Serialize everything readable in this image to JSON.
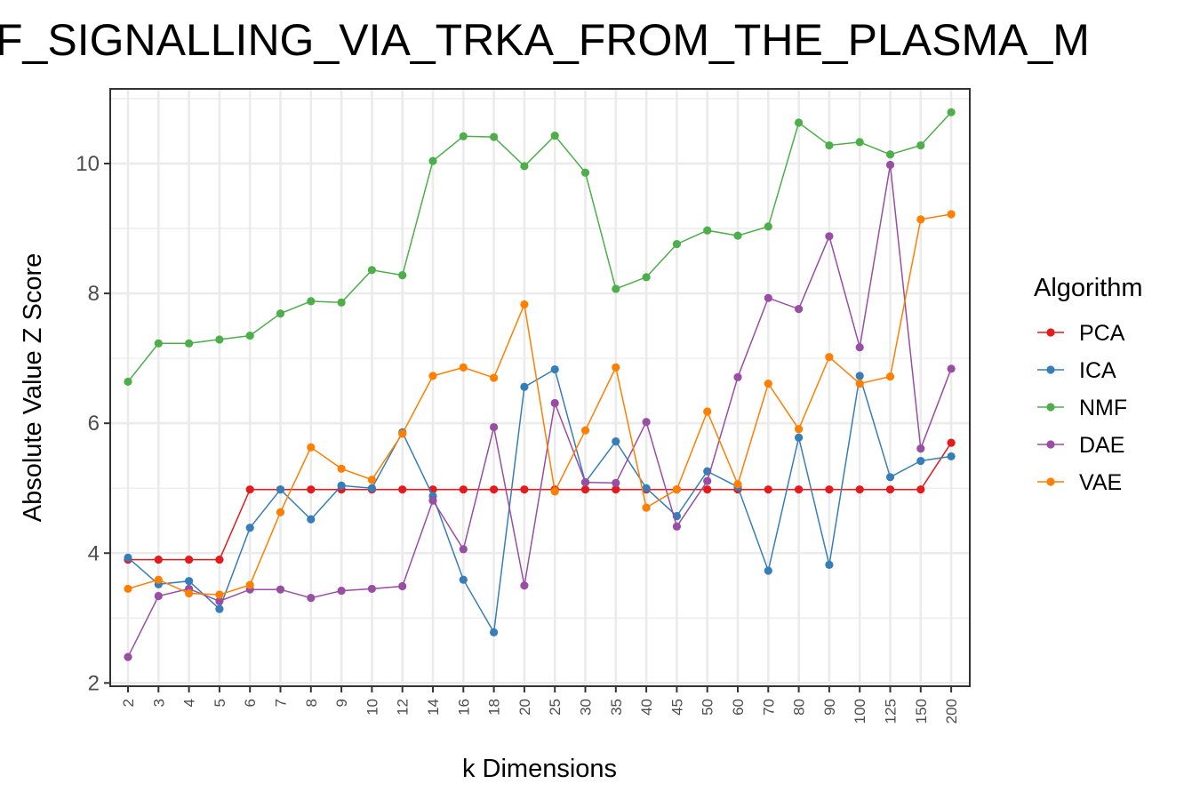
{
  "chart_data": {
    "type": "line",
    "title": "F_SIGNALLING_VIA_TRKA_FROM_THE_PLASMA_M",
    "xlabel": "k Dimensions",
    "ylabel": "Absolute Value Z Score",
    "categories": [
      "2",
      "3",
      "4",
      "5",
      "6",
      "7",
      "8",
      "9",
      "10",
      "12",
      "14",
      "16",
      "18",
      "20",
      "25",
      "30",
      "35",
      "40",
      "45",
      "50",
      "60",
      "70",
      "80",
      "90",
      "100",
      "125",
      "150",
      "200"
    ],
    "yticks": [
      2,
      4,
      6,
      8,
      10
    ],
    "ylim": [
      1.95,
      11.15
    ],
    "grid": true,
    "legend": {
      "title": "Algorithm",
      "position": "right"
    },
    "series": [
      {
        "name": "PCA",
        "color": "#e41a1c",
        "values": [
          3.9,
          3.9,
          3.9,
          3.9,
          4.98,
          4.98,
          4.98,
          4.98,
          4.98,
          4.98,
          4.98,
          4.98,
          4.98,
          4.98,
          4.98,
          4.98,
          4.98,
          4.98,
          4.98,
          4.98,
          4.98,
          4.98,
          4.98,
          4.98,
          4.98,
          4.98,
          4.98,
          5.7
        ]
      },
      {
        "name": "ICA",
        "color": "#377eb8",
        "values": [
          3.93,
          3.52,
          3.57,
          3.14,
          4.39,
          4.98,
          4.52,
          5.04,
          5.0,
          5.86,
          4.88,
          3.59,
          2.78,
          6.56,
          6.83,
          5.09,
          5.72,
          5.0,
          4.57,
          5.26,
          5.02,
          3.73,
          5.78,
          3.82,
          6.73,
          5.17,
          5.42,
          5.49
        ]
      },
      {
        "name": "NMF",
        "color": "#4daf4a",
        "values": [
          6.64,
          7.23,
          7.23,
          7.29,
          7.35,
          7.69,
          7.88,
          7.86,
          8.36,
          8.28,
          10.04,
          10.42,
          10.41,
          9.96,
          10.43,
          9.86,
          8.07,
          8.25,
          8.76,
          8.97,
          8.89,
          9.03,
          10.63,
          10.28,
          10.33,
          10.14,
          10.28,
          10.79
        ]
      },
      {
        "name": "DAE",
        "color": "#984ea3",
        "values": [
          2.4,
          3.34,
          3.45,
          3.26,
          3.44,
          3.44,
          3.31,
          3.42,
          3.45,
          3.49,
          4.81,
          4.06,
          5.94,
          3.5,
          6.31,
          5.09,
          5.08,
          6.02,
          4.41,
          5.11,
          6.71,
          7.93,
          7.76,
          8.88,
          7.17,
          9.98,
          5.61,
          6.84
        ]
      },
      {
        "name": "VAE",
        "color": "#ff7f00",
        "values": [
          3.45,
          3.59,
          3.38,
          3.36,
          3.51,
          4.63,
          5.63,
          5.3,
          5.13,
          5.84,
          6.73,
          6.86,
          6.7,
          7.83,
          4.95,
          5.89,
          6.86,
          4.7,
          4.98,
          6.18,
          5.06,
          6.61,
          5.91,
          7.02,
          6.61,
          6.72,
          9.14,
          9.22
        ]
      }
    ]
  }
}
